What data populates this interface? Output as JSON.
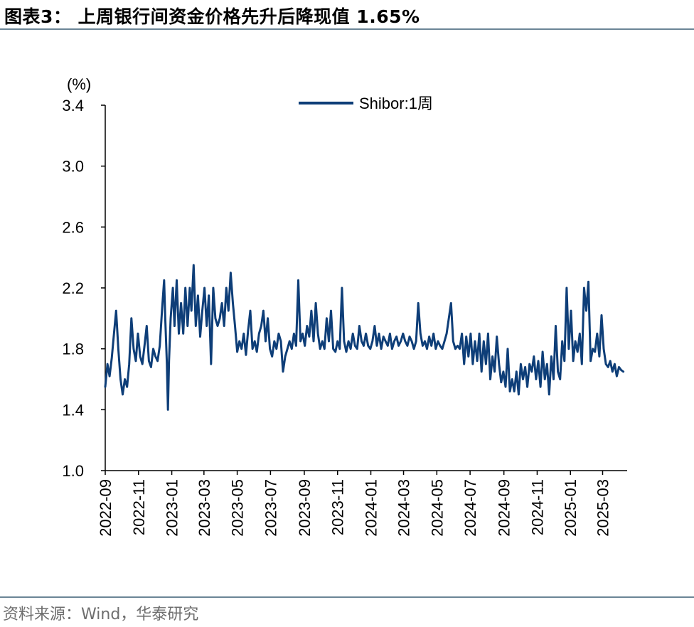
{
  "header": {
    "title": "图表3： 上周银行间资金价格先升后降现值 1.65%"
  },
  "footer": {
    "source": "资料来源：Wind，华泰研究"
  },
  "chart_data": {
    "type": "line",
    "title": "",
    "xlabel": "",
    "ylabel": "(%)",
    "ylim": [
      1.0,
      3.4
    ],
    "yticks": [
      1.0,
      1.4,
      1.8,
      2.2,
      2.6,
      3.0,
      3.4
    ],
    "ytick_labels": [
      "1.0",
      "1.4",
      "1.8",
      "2.2",
      "2.6",
      "3.0",
      "3.4"
    ],
    "xlim": [
      "2022-09",
      "2025-04-15"
    ],
    "xtick_labels": [
      "2022-09",
      "2022-11",
      "2023-01",
      "2023-03",
      "2023-05",
      "2023-07",
      "2023-09",
      "2023-11",
      "2024-01",
      "2024-03",
      "2024-05",
      "2024-07",
      "2024-09",
      "2024-11",
      "2025-01",
      "2025-03"
    ],
    "legend": {
      "position": "top-center"
    },
    "grid": false,
    "color": "#0e3e78",
    "series": [
      {
        "name": "Shibor:1周",
        "points": [
          [
            "2022-09-01",
            1.55
          ],
          [
            "2022-09-05",
            1.7
          ],
          [
            "2022-09-09",
            1.62
          ],
          [
            "2022-09-13",
            1.74
          ],
          [
            "2022-09-17",
            1.9
          ],
          [
            "2022-09-21",
            2.05
          ],
          [
            "2022-09-25",
            1.8
          ],
          [
            "2022-09-29",
            1.6
          ],
          [
            "2022-10-03",
            1.5
          ],
          [
            "2022-10-07",
            1.6
          ],
          [
            "2022-10-11",
            1.55
          ],
          [
            "2022-10-15",
            1.7
          ],
          [
            "2022-10-19",
            2.0
          ],
          [
            "2022-10-23",
            1.8
          ],
          [
            "2022-10-27",
            1.72
          ],
          [
            "2022-10-31",
            1.9
          ],
          [
            "2022-11-04",
            1.75
          ],
          [
            "2022-11-08",
            1.7
          ],
          [
            "2022-11-12",
            1.82
          ],
          [
            "2022-11-16",
            1.95
          ],
          [
            "2022-11-20",
            1.72
          ],
          [
            "2022-11-24",
            1.68
          ],
          [
            "2022-11-28",
            1.8
          ],
          [
            "2022-12-02",
            1.75
          ],
          [
            "2022-12-06",
            1.72
          ],
          [
            "2022-12-10",
            1.82
          ],
          [
            "2022-12-14",
            2.05
          ],
          [
            "2022-12-18",
            2.25
          ],
          [
            "2022-12-20",
            2.0
          ],
          [
            "2022-12-23",
            1.7
          ],
          [
            "2022-12-25",
            1.4
          ],
          [
            "2022-12-27",
            1.72
          ],
          [
            "2022-12-30",
            2.0
          ],
          [
            "2023-01-03",
            2.2
          ],
          [
            "2023-01-06",
            1.95
          ],
          [
            "2023-01-10",
            2.25
          ],
          [
            "2023-01-14",
            1.9
          ],
          [
            "2023-01-18",
            2.1
          ],
          [
            "2023-01-22",
            1.9
          ],
          [
            "2023-01-26",
            2.2
          ],
          [
            "2023-01-30",
            1.95
          ],
          [
            "2023-02-03",
            2.2
          ],
          [
            "2023-02-06",
            2.05
          ],
          [
            "2023-02-10",
            2.35
          ],
          [
            "2023-02-14",
            1.95
          ],
          [
            "2023-02-18",
            2.15
          ],
          [
            "2023-02-22",
            1.88
          ],
          [
            "2023-02-26",
            2.05
          ],
          [
            "2023-03-02",
            2.2
          ],
          [
            "2023-03-06",
            1.95
          ],
          [
            "2023-03-10",
            2.15
          ],
          [
            "2023-03-14",
            1.7
          ],
          [
            "2023-03-18",
            2.2
          ],
          [
            "2023-03-22",
            2.0
          ],
          [
            "2023-03-26",
            1.95
          ],
          [
            "2023-03-30",
            2.0
          ],
          [
            "2023-04-03",
            2.1
          ],
          [
            "2023-04-07",
            1.95
          ],
          [
            "2023-04-11",
            2.2
          ],
          [
            "2023-04-15",
            2.05
          ],
          [
            "2023-04-19",
            2.3
          ],
          [
            "2023-04-23",
            2.1
          ],
          [
            "2023-04-27",
            1.95
          ],
          [
            "2023-05-01",
            1.78
          ],
          [
            "2023-05-05",
            1.85
          ],
          [
            "2023-05-09",
            1.8
          ],
          [
            "2023-05-13",
            1.9
          ],
          [
            "2023-05-17",
            1.76
          ],
          [
            "2023-05-21",
            1.92
          ],
          [
            "2023-05-25",
            2.05
          ],
          [
            "2023-05-29",
            1.8
          ],
          [
            "2023-06-02",
            1.85
          ],
          [
            "2023-06-06",
            1.78
          ],
          [
            "2023-06-10",
            1.9
          ],
          [
            "2023-06-14",
            1.95
          ],
          [
            "2023-06-18",
            2.05
          ],
          [
            "2023-06-22",
            1.85
          ],
          [
            "2023-06-26",
            2.0
          ],
          [
            "2023-06-30",
            1.8
          ],
          [
            "2023-07-04",
            1.75
          ],
          [
            "2023-07-08",
            1.85
          ],
          [
            "2023-07-12",
            1.8
          ],
          [
            "2023-07-16",
            1.9
          ],
          [
            "2023-07-20",
            1.85
          ],
          [
            "2023-07-24",
            1.65
          ],
          [
            "2023-07-28",
            1.75
          ],
          [
            "2023-08-01",
            1.8
          ],
          [
            "2023-08-05",
            1.85
          ],
          [
            "2023-08-09",
            1.8
          ],
          [
            "2023-08-13",
            1.9
          ],
          [
            "2023-08-17",
            1.82
          ],
          [
            "2023-08-21",
            2.25
          ],
          [
            "2023-08-25",
            1.85
          ],
          [
            "2023-08-29",
            1.9
          ],
          [
            "2023-09-02",
            1.82
          ],
          [
            "2023-09-06",
            1.95
          ],
          [
            "2023-09-10",
            1.88
          ],
          [
            "2023-09-14",
            2.05
          ],
          [
            "2023-09-18",
            1.85
          ],
          [
            "2023-09-22",
            2.1
          ],
          [
            "2023-09-26",
            1.9
          ],
          [
            "2023-09-30",
            1.8
          ],
          [
            "2023-10-04",
            1.85
          ],
          [
            "2023-10-08",
            1.8
          ],
          [
            "2023-10-12",
            2.0
          ],
          [
            "2023-10-16",
            1.85
          ],
          [
            "2023-10-20",
            2.05
          ],
          [
            "2023-10-24",
            1.8
          ],
          [
            "2023-10-28",
            1.78
          ],
          [
            "2023-11-01",
            1.85
          ],
          [
            "2023-11-05",
            1.8
          ],
          [
            "2023-11-09",
            2.2
          ],
          [
            "2023-11-13",
            1.85
          ],
          [
            "2023-11-17",
            1.78
          ],
          [
            "2023-11-21",
            1.85
          ],
          [
            "2023-11-25",
            1.8
          ],
          [
            "2023-11-29",
            1.9
          ],
          [
            "2023-12-03",
            1.82
          ],
          [
            "2023-12-07",
            1.8
          ],
          [
            "2023-12-11",
            1.95
          ],
          [
            "2023-12-15",
            1.85
          ],
          [
            "2023-12-19",
            1.82
          ],
          [
            "2023-12-23",
            1.9
          ],
          [
            "2023-12-27",
            1.82
          ],
          [
            "2023-12-31",
            1.8
          ],
          [
            "2024-01-04",
            1.85
          ],
          [
            "2024-01-08",
            1.95
          ],
          [
            "2024-01-12",
            1.82
          ],
          [
            "2024-01-16",
            1.9
          ],
          [
            "2024-01-20",
            1.8
          ],
          [
            "2024-01-24",
            1.88
          ],
          [
            "2024-01-28",
            1.85
          ],
          [
            "2024-02-01",
            1.82
          ],
          [
            "2024-02-05",
            1.9
          ],
          [
            "2024-02-09",
            1.8
          ],
          [
            "2024-02-13",
            1.85
          ],
          [
            "2024-02-17",
            1.88
          ],
          [
            "2024-02-21",
            1.82
          ],
          [
            "2024-02-25",
            1.85
          ],
          [
            "2024-02-29",
            1.9
          ],
          [
            "2024-03-04",
            1.85
          ],
          [
            "2024-03-08",
            1.82
          ],
          [
            "2024-03-12",
            1.88
          ],
          [
            "2024-03-16",
            1.85
          ],
          [
            "2024-03-20",
            1.8
          ],
          [
            "2024-03-24",
            1.85
          ],
          [
            "2024-03-28",
            2.1
          ],
          [
            "2024-04-01",
            1.9
          ],
          [
            "2024-04-05",
            1.82
          ],
          [
            "2024-04-09",
            1.85
          ],
          [
            "2024-04-13",
            1.8
          ],
          [
            "2024-04-17",
            1.88
          ],
          [
            "2024-04-21",
            1.82
          ],
          [
            "2024-04-25",
            1.9
          ],
          [
            "2024-04-29",
            1.8
          ],
          [
            "2024-05-03",
            1.85
          ],
          [
            "2024-05-07",
            1.82
          ],
          [
            "2024-05-11",
            1.8
          ],
          [
            "2024-05-15",
            1.85
          ],
          [
            "2024-05-19",
            1.9
          ],
          [
            "2024-05-23",
            2.0
          ],
          [
            "2024-05-27",
            2.1
          ],
          [
            "2024-05-31",
            1.85
          ],
          [
            "2024-06-04",
            1.8
          ],
          [
            "2024-06-08",
            1.82
          ],
          [
            "2024-06-12",
            1.8
          ],
          [
            "2024-06-16",
            1.9
          ],
          [
            "2024-06-20",
            1.7
          ],
          [
            "2024-06-24",
            1.88
          ],
          [
            "2024-06-28",
            1.75
          ],
          [
            "2024-07-02",
            1.9
          ],
          [
            "2024-07-06",
            1.7
          ],
          [
            "2024-07-10",
            1.85
          ],
          [
            "2024-07-14",
            1.72
          ],
          [
            "2024-07-18",
            1.9
          ],
          [
            "2024-07-22",
            1.65
          ],
          [
            "2024-07-26",
            1.85
          ],
          [
            "2024-07-30",
            1.7
          ],
          [
            "2024-08-03",
            1.9
          ],
          [
            "2024-08-07",
            1.6
          ],
          [
            "2024-08-11",
            1.75
          ],
          [
            "2024-08-15",
            1.65
          ],
          [
            "2024-08-19",
            1.88
          ],
          [
            "2024-08-23",
            1.7
          ],
          [
            "2024-08-27",
            1.58
          ],
          [
            "2024-08-31",
            1.65
          ],
          [
            "2024-09-04",
            1.55
          ],
          [
            "2024-09-08",
            1.8
          ],
          [
            "2024-09-12",
            1.52
          ],
          [
            "2024-09-16",
            1.6
          ],
          [
            "2024-09-20",
            1.52
          ],
          [
            "2024-09-24",
            1.65
          ],
          [
            "2024-09-28",
            1.5
          ],
          [
            "2024-10-02",
            1.7
          ],
          [
            "2024-10-06",
            1.6
          ],
          [
            "2024-10-10",
            1.68
          ],
          [
            "2024-10-14",
            1.55
          ],
          [
            "2024-10-18",
            1.7
          ],
          [
            "2024-10-22",
            1.65
          ],
          [
            "2024-10-26",
            1.75
          ],
          [
            "2024-10-30",
            1.6
          ],
          [
            "2024-11-03",
            1.72
          ],
          [
            "2024-11-07",
            1.55
          ],
          [
            "2024-11-11",
            1.78
          ],
          [
            "2024-11-15",
            1.6
          ],
          [
            "2024-11-19",
            1.7
          ],
          [
            "2024-11-23",
            1.5
          ],
          [
            "2024-11-27",
            1.75
          ],
          [
            "2024-12-01",
            1.6
          ],
          [
            "2024-12-05",
            1.95
          ],
          [
            "2024-12-09",
            1.65
          ],
          [
            "2024-12-13",
            1.6
          ],
          [
            "2024-12-17",
            1.85
          ],
          [
            "2024-12-21",
            1.72
          ],
          [
            "2024-12-25",
            2.2
          ],
          [
            "2024-12-29",
            1.8
          ],
          [
            "2025-01-02",
            2.05
          ],
          [
            "2025-01-06",
            1.72
          ],
          [
            "2025-01-10",
            1.85
          ],
          [
            "2025-01-14",
            1.78
          ],
          [
            "2025-01-18",
            1.9
          ],
          [
            "2025-01-22",
            1.7
          ],
          [
            "2025-01-26",
            2.2
          ],
          [
            "2025-01-30",
            2.05
          ],
          [
            "2025-02-03",
            2.24
          ],
          [
            "2025-02-07",
            1.72
          ],
          [
            "2025-02-11",
            1.8
          ],
          [
            "2025-02-15",
            1.78
          ],
          [
            "2025-02-19",
            1.9
          ],
          [
            "2025-02-23",
            1.75
          ],
          [
            "2025-02-27",
            2.02
          ],
          [
            "2025-03-03",
            1.8
          ],
          [
            "2025-03-07",
            1.7
          ],
          [
            "2025-03-11",
            1.68
          ],
          [
            "2025-03-15",
            1.72
          ],
          [
            "2025-03-19",
            1.65
          ],
          [
            "2025-03-23",
            1.7
          ],
          [
            "2025-03-27",
            1.62
          ],
          [
            "2025-03-31",
            1.68
          ],
          [
            "2025-04-04",
            1.66
          ],
          [
            "2025-04-08",
            1.65
          ]
        ]
      }
    ]
  }
}
